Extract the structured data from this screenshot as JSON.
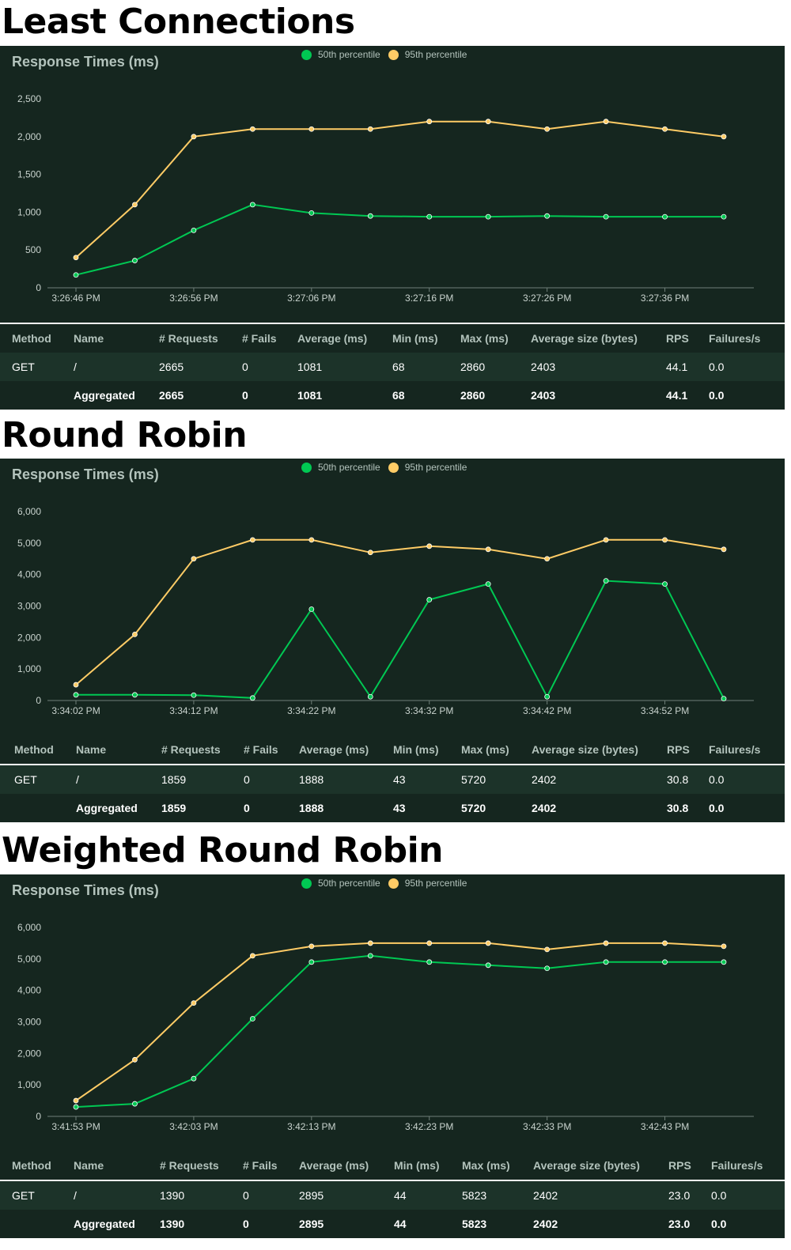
{
  "columns": [
    "Method",
    "Name",
    "# Requests",
    "# Fails",
    "Average (ms)",
    "Min (ms)",
    "Max (ms)",
    "Average size (bytes)",
    "RPS",
    "Failures/s"
  ],
  "colors": {
    "p50": "#00c853",
    "p95": "#ffcc66",
    "axis": "#6f7f78",
    "panel": "#15261f"
  },
  "sections": [
    {
      "heading": "Least Connections",
      "table": {
        "get": [
          "GET",
          "/",
          "2665",
          "0",
          "1081",
          "68",
          "2860",
          "2403",
          "44.1",
          "0.0"
        ],
        "aggregated": [
          "",
          "Aggregated",
          "2665",
          "0",
          "1081",
          "68",
          "2860",
          "2403",
          "44.1",
          "0.0"
        ]
      },
      "chart_data": {
        "type": "line",
        "title": "Response Times (ms)",
        "legend": [
          "50th percentile",
          "95th percentile"
        ],
        "legend_position": "top-center",
        "ylim": [
          0,
          2500
        ],
        "yticks": [
          0,
          500,
          1000,
          1500,
          2000,
          2500
        ],
        "ytick_labels": [
          "0",
          "500",
          "1,000",
          "1,500",
          "2,000",
          "2,500"
        ],
        "x_tick_labels": [
          "3:26:46 PM",
          "3:26:56 PM",
          "3:27:06 PM",
          "3:27:16 PM",
          "3:27:26 PM",
          "3:27:36 PM"
        ],
        "x": [
          "3:26:46 PM",
          "3:26:51 PM",
          "3:26:56 PM",
          "3:27:01 PM",
          "3:27:06 PM",
          "3:27:11 PM",
          "3:27:16 PM",
          "3:27:21 PM",
          "3:27:26 PM",
          "3:27:31 PM",
          "3:27:36 PM",
          "3:27:41 PM"
        ],
        "series": [
          {
            "name": "50th percentile",
            "values": [
              170,
              360,
              760,
              1100,
              990,
              950,
              940,
              940,
              950,
              940,
              940,
              940
            ]
          },
          {
            "name": "95th percentile",
            "values": [
              400,
              1100,
              2000,
              2100,
              2100,
              2100,
              2200,
              2200,
              2100,
              2200,
              2100,
              2000
            ]
          }
        ]
      }
    },
    {
      "heading": "Round Robin",
      "table": {
        "get": [
          "GET",
          "/",
          "1859",
          "0",
          "1888",
          "43",
          "5720",
          "2402",
          "30.8",
          "0.0"
        ],
        "aggregated": [
          "",
          "Aggregated",
          "1859",
          "0",
          "1888",
          "43",
          "5720",
          "2402",
          "30.8",
          "0.0"
        ]
      },
      "chart_data": {
        "type": "line",
        "title": "Response Times (ms)",
        "legend": [
          "50th percentile",
          "95th percentile"
        ],
        "legend_position": "top-center",
        "ylim": [
          0,
          6000
        ],
        "yticks": [
          0,
          1000,
          2000,
          3000,
          4000,
          5000,
          6000
        ],
        "ytick_labels": [
          "0",
          "1,000",
          "2,000",
          "3,000",
          "4,000",
          "5,000",
          "6,000"
        ],
        "x_tick_labels": [
          "3:34:02 PM",
          "3:34:12 PM",
          "3:34:22 PM",
          "3:34:32 PM",
          "3:34:42 PM",
          "3:34:52 PM"
        ],
        "x": [
          "3:34:02 PM",
          "3:34:07 PM",
          "3:34:12 PM",
          "3:34:17 PM",
          "3:34:22 PM",
          "3:34:27 PM",
          "3:34:32 PM",
          "3:34:37 PM",
          "3:34:42 PM",
          "3:34:47 PM",
          "3:34:52 PM",
          "3:34:57 PM"
        ],
        "series": [
          {
            "name": "50th percentile",
            "values": [
              180,
              180,
              170,
              80,
              2900,
              120,
              3200,
              3700,
              120,
              3800,
              3700,
              60
            ]
          },
          {
            "name": "95th percentile",
            "values": [
              500,
              2100,
              4500,
              5100,
              5100,
              4700,
              4900,
              4800,
              4500,
              5100,
              5100,
              4800
            ]
          }
        ]
      }
    },
    {
      "heading": "Weighted Round Robin",
      "table": {
        "get": [
          "GET",
          "/",
          "1390",
          "0",
          "2895",
          "44",
          "5823",
          "2402",
          "23.0",
          "0.0"
        ],
        "aggregated": [
          "",
          "Aggregated",
          "1390",
          "0",
          "2895",
          "44",
          "5823",
          "2402",
          "23.0",
          "0.0"
        ]
      },
      "chart_data": {
        "type": "line",
        "title": "Response Times (ms)",
        "legend": [
          "50th percentile",
          "95th percentile"
        ],
        "legend_position": "top-center",
        "ylim": [
          0,
          6000
        ],
        "yticks": [
          0,
          1000,
          2000,
          3000,
          4000,
          5000,
          6000
        ],
        "ytick_labels": [
          "0",
          "1,000",
          "2,000",
          "3,000",
          "4,000",
          "5,000",
          "6,000"
        ],
        "x_tick_labels": [
          "3:41:53 PM",
          "3:42:03 PM",
          "3:42:13 PM",
          "3:42:23 PM",
          "3:42:33 PM",
          "3:42:43 PM"
        ],
        "x": [
          "3:41:53 PM",
          "3:41:58 PM",
          "3:42:03 PM",
          "3:42:08 PM",
          "3:42:13 PM",
          "3:42:18 PM",
          "3:42:23 PM",
          "3:42:28 PM",
          "3:42:33 PM",
          "3:42:38 PM",
          "3:42:43 PM",
          "3:42:48 PM"
        ],
        "series": [
          {
            "name": "50th percentile",
            "values": [
              300,
              400,
              1200,
              3100,
              4900,
              5100,
              4900,
              4800,
              4700,
              4900,
              4900,
              4900
            ]
          },
          {
            "name": "95th percentile",
            "values": [
              500,
              1800,
              3600,
              5100,
              5400,
              5500,
              5500,
              5500,
              5300,
              5500,
              5500,
              5400
            ]
          }
        ]
      }
    }
  ]
}
